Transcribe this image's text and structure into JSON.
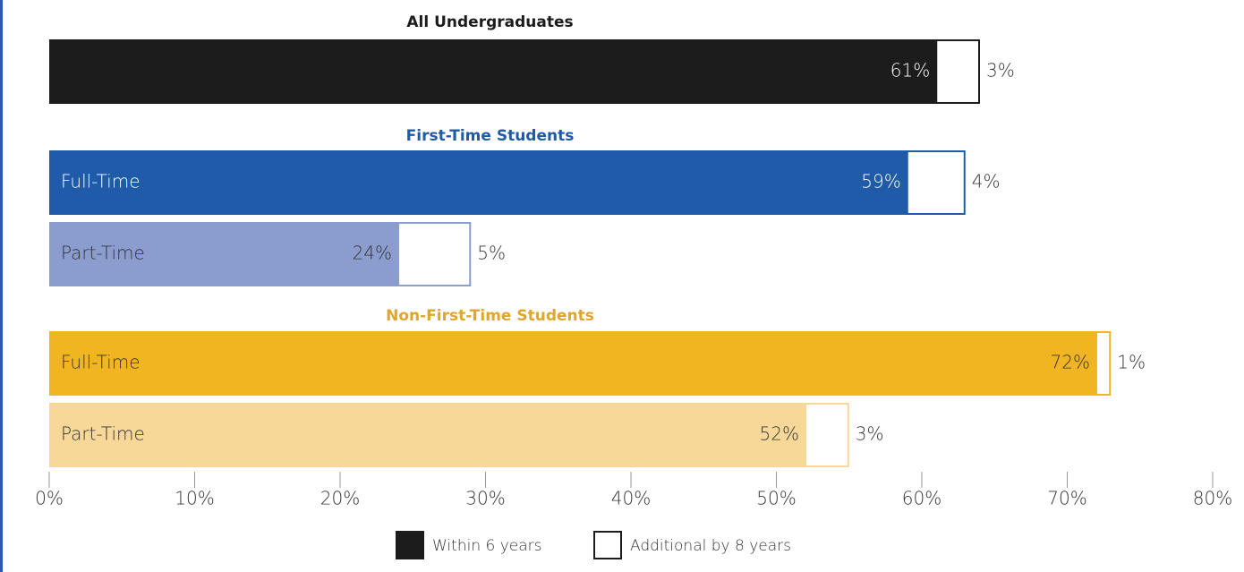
{
  "chart_data": {
    "type": "bar",
    "orientation": "horizontal",
    "stacked": true,
    "xlim": [
      0,
      80
    ],
    "xticks": [
      {
        "value": 0,
        "label": "0%"
      },
      {
        "value": 10,
        "label": "10%"
      },
      {
        "value": 20,
        "label": "20%"
      },
      {
        "value": 30,
        "label": "30%"
      },
      {
        "value": 40,
        "label": "40%"
      },
      {
        "value": 50,
        "label": "50%"
      },
      {
        "value": 60,
        "label": "60%"
      },
      {
        "value": 70,
        "label": "70%"
      },
      {
        "value": 80,
        "label": "80%"
      }
    ],
    "series": [
      {
        "name": "Within 6 years",
        "color": "#1c1c1c"
      },
      {
        "name": "Additional by 8 years",
        "color": "#ffffff"
      }
    ],
    "groups": [
      {
        "title": "All Undergraduates",
        "title_color": "#1c1c1c",
        "categories": [
          null
        ],
        "colors": [
          "#1c1c1c"
        ],
        "label_colors": [
          "#ffffff"
        ],
        "within": [
          61
        ],
        "within_labels": [
          "61%"
        ],
        "additional": [
          3
        ],
        "additional_labels": [
          "3%"
        ]
      },
      {
        "title": "First-Time Students",
        "title_color": "#1f5ba8",
        "categories": [
          "Full-Time",
          "Part-Time"
        ],
        "colors": [
          "#1f5ba8",
          "#8b9dcf"
        ],
        "label_colors": [
          "#ffffff",
          "#333333"
        ],
        "within": [
          59,
          24
        ],
        "within_labels": [
          "59%",
          "24%"
        ],
        "additional": [
          4,
          5
        ],
        "additional_labels": [
          "4%",
          "5%"
        ]
      },
      {
        "title": "Non-First-Time Students",
        "title_color": "#e0a52a",
        "categories": [
          "Full-Time",
          "Part-Time"
        ],
        "colors": [
          "#f2b522",
          "#f8d899"
        ],
        "label_colors": [
          "#333333",
          "#333333"
        ],
        "within": [
          72,
          52
        ],
        "within_labels": [
          "72%",
          "52%"
        ],
        "additional": [
          1,
          3
        ],
        "additional_labels": [
          "1%",
          "3%"
        ]
      }
    ]
  }
}
